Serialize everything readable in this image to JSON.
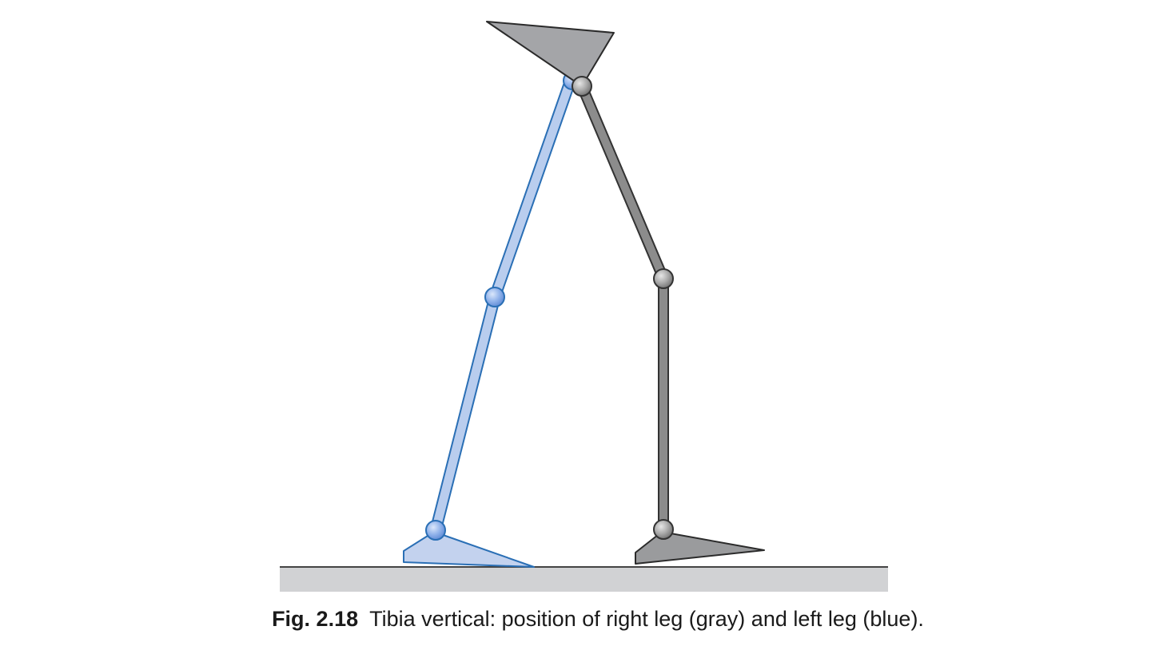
{
  "caption": {
    "label": "Fig. 2.18",
    "text": "Tibia vertical: position of right leg (gray) and left leg (blue)."
  },
  "colors": {
    "gray_leg_fill": "#8c8c8c",
    "gray_leg_stroke": "#333333",
    "gray_pelvis_fill": "#a4a5a8",
    "gray_foot_fill": "#9a9b9d",
    "blue_leg_fill": "#b9cdee",
    "blue_leg_stroke": "#2a6fb5",
    "blue_foot_fill": "#c3d2ee",
    "blue_joint_fill": "#8fb0e8",
    "ground_fill": "#d1d2d4",
    "ground_line": "#444444"
  }
}
